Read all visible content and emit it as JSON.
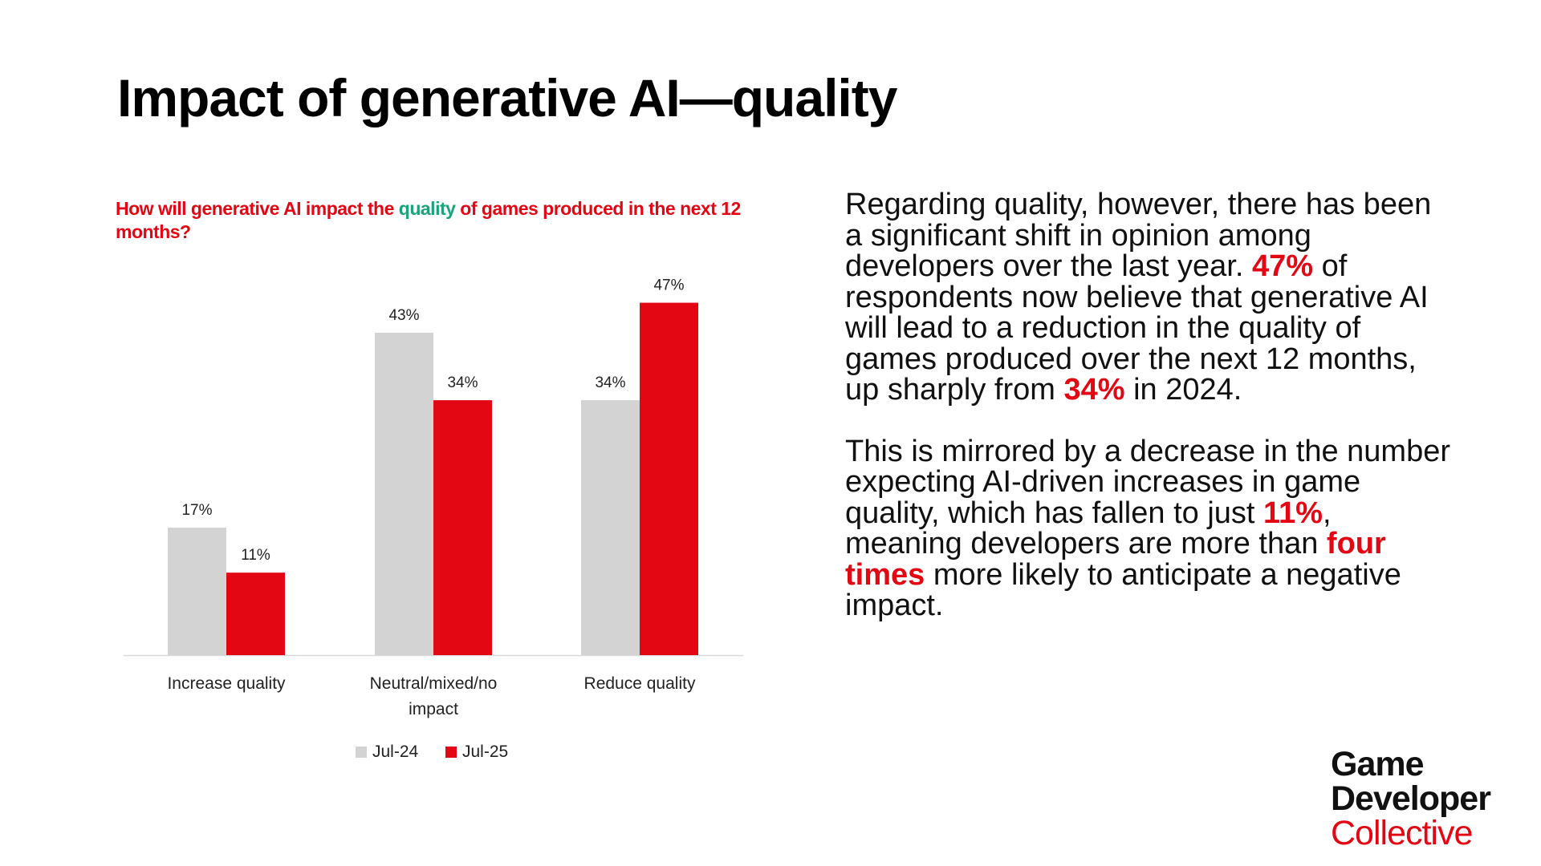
{
  "title": "Impact of generative AI—quality",
  "question": {
    "before": "How will generative AI impact the ",
    "highlight": "quality",
    "after": " of games produced in the next 12 months?"
  },
  "colors": {
    "accent": "#e30613",
    "highlight": "#1aa37a",
    "series1": "#d3d3d3",
    "series2": "#e30613"
  },
  "chart_data": {
    "type": "bar",
    "title": "How will generative AI impact the quality of games produced in the next 12 months?",
    "categories": [
      [
        "Increase quality"
      ],
      [
        "Neutral/mixed/no",
        "impact"
      ],
      [
        "Reduce quality"
      ]
    ],
    "series": [
      {
        "name": "Jul-24",
        "values": [
          17,
          43,
          34
        ],
        "labels": [
          "17%",
          "43%",
          "34%"
        ]
      },
      {
        "name": "Jul-25",
        "values": [
          11,
          34,
          47
        ],
        "labels": [
          "11%",
          "34%",
          "47%"
        ]
      }
    ],
    "ylim": [
      0,
      50
    ],
    "grid": false,
    "legend_position": "bottom"
  },
  "body": {
    "p1": [
      {
        "t": "Regarding quality, however, there has been a significant shift in opinion among developers over the last year. "
      },
      {
        "t": "47%",
        "b": true
      },
      {
        "t": " of respondents now believe that generative AI will lead to a reduction in the quality of games produced over the next 12 months, up sharply from "
      },
      {
        "t": "34%",
        "b": true
      },
      {
        "t": " in 2024."
      }
    ],
    "p2": [
      {
        "t": "This is mirrored by a decrease in the number expecting AI-driven increases in game quality, which has fallen to just "
      },
      {
        "t": "11%",
        "b": true
      },
      {
        "t": ", meaning developers are more than "
      },
      {
        "t": "four times",
        "b": true
      },
      {
        "t": " more likely to anticipate a negative impact."
      }
    ]
  },
  "logo": {
    "line1": "Game",
    "line2": "Developer",
    "line3": "Collective"
  }
}
